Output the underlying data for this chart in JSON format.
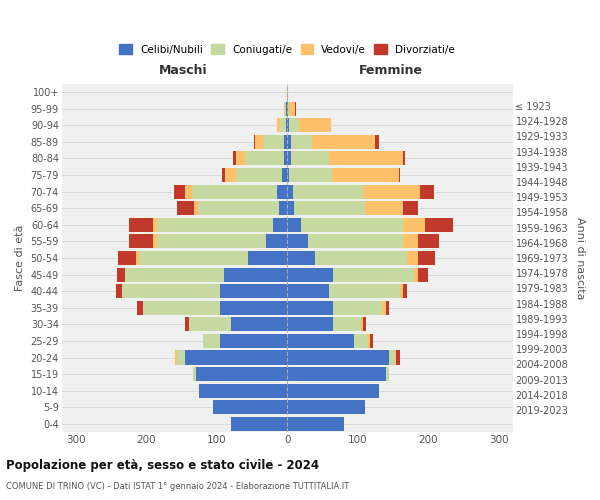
{
  "age_groups": [
    "0-4",
    "5-9",
    "10-14",
    "15-19",
    "20-24",
    "25-29",
    "30-34",
    "35-39",
    "40-44",
    "45-49",
    "50-54",
    "55-59",
    "60-64",
    "65-69",
    "70-74",
    "75-79",
    "80-84",
    "85-89",
    "90-94",
    "95-99",
    "100+"
  ],
  "birth_years": [
    "2019-2023",
    "2014-2018",
    "2009-2013",
    "2004-2008",
    "1999-2003",
    "1994-1998",
    "1989-1993",
    "1984-1988",
    "1979-1983",
    "1974-1978",
    "1969-1973",
    "1964-1968",
    "1959-1963",
    "1954-1958",
    "1949-1953",
    "1944-1948",
    "1939-1943",
    "1934-1938",
    "1929-1933",
    "1924-1928",
    "≤ 1923"
  ],
  "male": {
    "celibi": [
      80,
      105,
      125,
      130,
      145,
      95,
      80,
      95,
      95,
      90,
      55,
      30,
      20,
      12,
      15,
      8,
      5,
      5,
      2,
      1,
      0
    ],
    "coniugati": [
      0,
      0,
      0,
      4,
      12,
      25,
      60,
      110,
      140,
      140,
      155,
      155,
      165,
      115,
      120,
      65,
      55,
      30,
      8,
      2,
      0
    ],
    "vedovi": [
      0,
      0,
      0,
      0,
      2,
      0,
      0,
      0,
      0,
      0,
      5,
      5,
      5,
      5,
      10,
      15,
      12,
      10,
      5,
      1,
      0
    ],
    "divorziati": [
      0,
      0,
      0,
      0,
      0,
      0,
      5,
      8,
      8,
      12,
      25,
      35,
      35,
      25,
      15,
      5,
      5,
      2,
      0,
      0,
      0
    ]
  },
  "female": {
    "nubili": [
      80,
      110,
      130,
      140,
      145,
      95,
      65,
      65,
      60,
      65,
      40,
      30,
      20,
      10,
      8,
      3,
      5,
      5,
      2,
      1,
      0
    ],
    "coniugate": [
      0,
      0,
      0,
      5,
      8,
      20,
      40,
      70,
      100,
      115,
      130,
      135,
      145,
      100,
      100,
      60,
      55,
      30,
      15,
      2,
      0
    ],
    "vedove": [
      0,
      0,
      0,
      0,
      2,
      2,
      2,
      5,
      5,
      5,
      15,
      20,
      30,
      55,
      80,
      95,
      105,
      90,
      45,
      8,
      1
    ],
    "divorziate": [
      0,
      0,
      0,
      0,
      5,
      5,
      5,
      5,
      5,
      15,
      25,
      30,
      40,
      20,
      20,
      2,
      2,
      5,
      0,
      2,
      0
    ]
  },
  "colors": {
    "celibi": "#4472C4",
    "coniugati": "#c5d9a0",
    "vedovi": "#ffc06a",
    "divorziati": "#c0392b"
  },
  "title1": "Popolazione per età, sesso e stato civile - 2024",
  "title2": "COMUNE DI TRINO (VC) - Dati ISTAT 1° gennaio 2024 - Elaborazione TUTTITALIA.IT",
  "xlabel_left": "Maschi",
  "xlabel_right": "Femmine",
  "ylabel_left": "Fasce di età",
  "ylabel_right": "Anni di nascita",
  "xlim": 320,
  "background_color": "#ffffff",
  "plot_bg_color": "#f0f0f0",
  "grid_color": "#d0d0d0"
}
